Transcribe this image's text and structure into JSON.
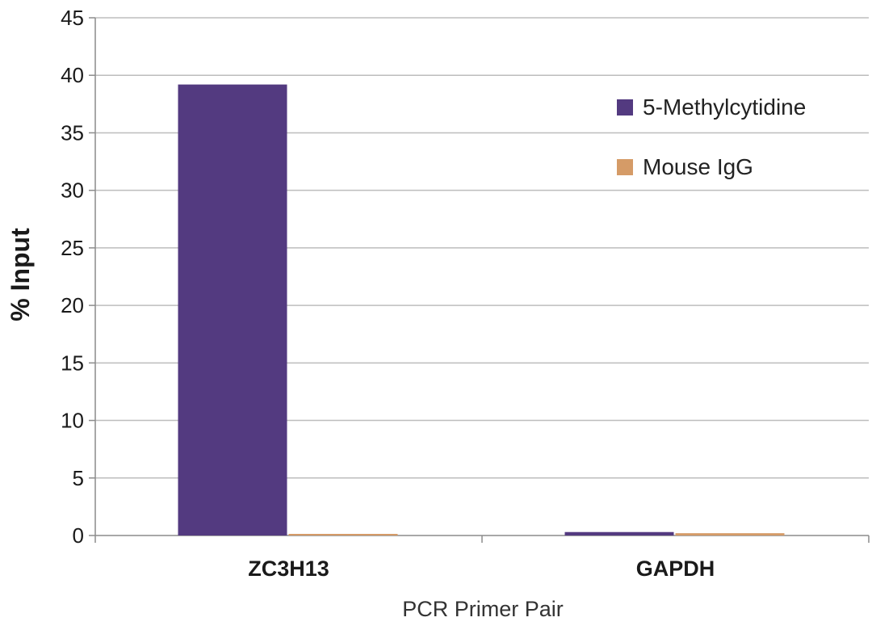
{
  "colors": {
    "series_0": "#533a80",
    "series_1": "#d59b67",
    "grid": "#bdbdbd",
    "axis": "#8c8c8c"
  },
  "chart_data": {
    "type": "bar",
    "categories": [
      "ZC3H13",
      "GAPDH"
    ],
    "series": [
      {
        "name": "5-Methylcytidine",
        "values": [
          39.2,
          0.3
        ]
      },
      {
        "name": "Mouse IgG",
        "values": [
          0.1,
          0.2
        ]
      }
    ],
    "xlabel": "PCR Primer Pair",
    "ylabel": "% Input",
    "ylim": [
      0,
      45
    ],
    "yticks": [
      0,
      5,
      10,
      15,
      20,
      25,
      30,
      35,
      40,
      45
    ],
    "grid": true,
    "legend": "top-right"
  }
}
